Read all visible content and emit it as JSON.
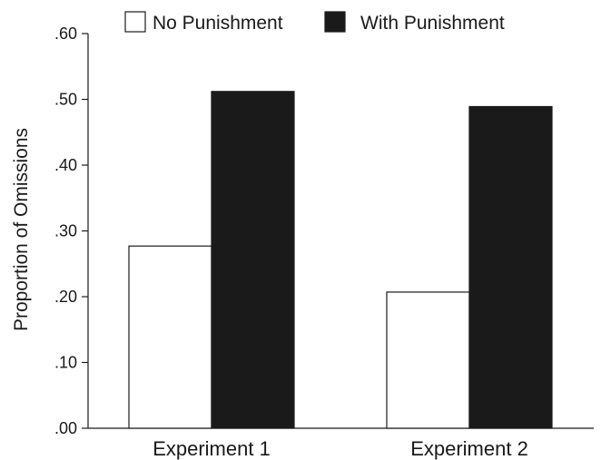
{
  "chart_data": {
    "type": "bar",
    "title": "",
    "xlabel": "",
    "ylabel": "Proportion of Omissions",
    "ylim": [
      0,
      0.6
    ],
    "yticks": [
      0,
      0.1,
      0.2,
      0.3,
      0.4,
      0.5,
      0.6
    ],
    "ytick_labels": [
      ".00",
      ".10",
      ".20",
      ".30",
      ".40",
      ".50",
      ".60"
    ],
    "categories": [
      "Experiment 1",
      "Experiment 2"
    ],
    "series": [
      {
        "name": "No Punishment",
        "values": [
          0.277,
          0.207
        ],
        "color": "#ffffff"
      },
      {
        "name": "With Punishment",
        "values": [
          0.512,
          0.489
        ],
        "color": "#1a1a1a"
      }
    ],
    "legend_position": "top",
    "grid": false
  }
}
